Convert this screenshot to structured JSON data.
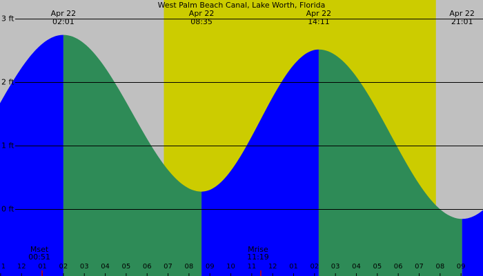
{
  "chart_data": {
    "type": "area",
    "title": "West Palm Beach Canal, Lake Worth, Florida",
    "y_unit": "ft",
    "ylim": [
      -1.05,
      3.3
    ],
    "xlim_hours": [
      -0.03,
      23.05
    ],
    "y_ticks": [
      {
        "value": 0,
        "label": "0 ft"
      },
      {
        "value": 1,
        "label": "1 ft"
      },
      {
        "value": 2,
        "label": "2 ft"
      },
      {
        "value": 3,
        "label": "3 ft"
      }
    ],
    "x_tick_labels": [
      "1",
      "12",
      "01",
      "02",
      "03",
      "04",
      "05",
      "06",
      "07",
      "08",
      "09",
      "10",
      "11",
      "12",
      "01",
      "02",
      "03",
      "04",
      "05",
      "06",
      "07",
      "08",
      "09"
    ],
    "tide_extremes": [
      {
        "date": "Apr 22",
        "time": "02:01",
        "hour": 3.0,
        "height_ft": 2.75,
        "kind": "high"
      },
      {
        "date": "Apr 22",
        "time": "08:35",
        "hour": 9.6,
        "height_ft": 0.28,
        "kind": "low"
      },
      {
        "date": "Apr 22",
        "time": "14:11",
        "hour": 15.2,
        "height_ft": 2.52,
        "kind": "high"
      },
      {
        "date": "Apr 22",
        "time": "21:01",
        "hour": 22.05,
        "height_ft": -0.15,
        "kind": "low"
      }
    ],
    "curve_edges": {
      "start_height_ft": 1.25,
      "end_height_ft": 0.1
    },
    "daylight_hours": [
      7.8,
      20.8
    ],
    "moon_events": [
      {
        "label": "Mset",
        "time": "00:51",
        "hour": 1.85
      },
      {
        "label": "Mrise",
        "time": "11:19",
        "hour": 12.3
      }
    ],
    "colors": {
      "night": "#c0c0c0",
      "day": "#cccc00",
      "rising": "#0000ff",
      "falling": "#2e8b57",
      "grid": "#000000",
      "moon_marker": "#cc0000"
    }
  }
}
